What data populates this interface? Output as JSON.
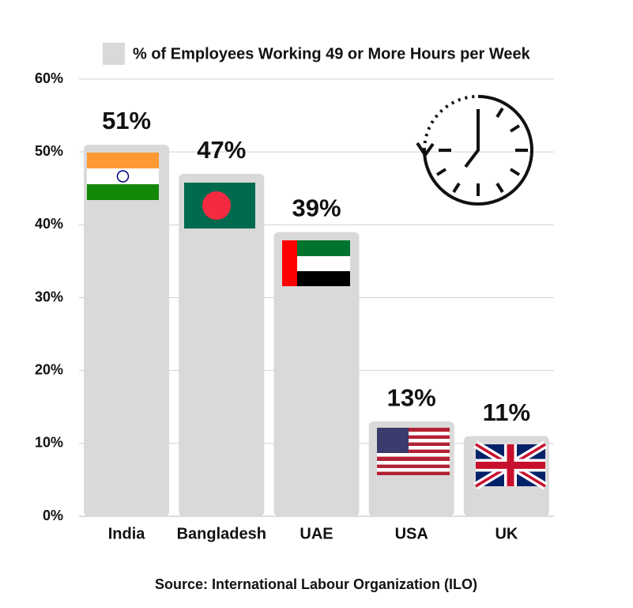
{
  "chart_data": {
    "type": "bar",
    "categories": [
      "India",
      "Bangladesh",
      "UAE",
      "USA",
      "UK"
    ],
    "series": [
      {
        "name": "% of Employees Working 49 or More Hours per Week",
        "color": "#d9d9d9",
        "values": [
          51,
          47,
          39,
          13,
          11
        ],
        "value_labels": [
          "51%",
          "47%",
          "39%",
          "13%",
          "11%"
        ]
      }
    ],
    "ylim": [
      0,
      60
    ],
    "yticks": [
      {
        "value": 0,
        "label": "0%"
      },
      {
        "value": 10,
        "label": "10%"
      },
      {
        "value": 20,
        "label": "20%"
      },
      {
        "value": 30,
        "label": "30%"
      },
      {
        "value": 40,
        "label": "40%"
      },
      {
        "value": 50,
        "label": "50%"
      },
      {
        "value": 60,
        "label": "60%"
      }
    ],
    "grid": true,
    "source": "Source: International Labour Organization (ILO)"
  }
}
